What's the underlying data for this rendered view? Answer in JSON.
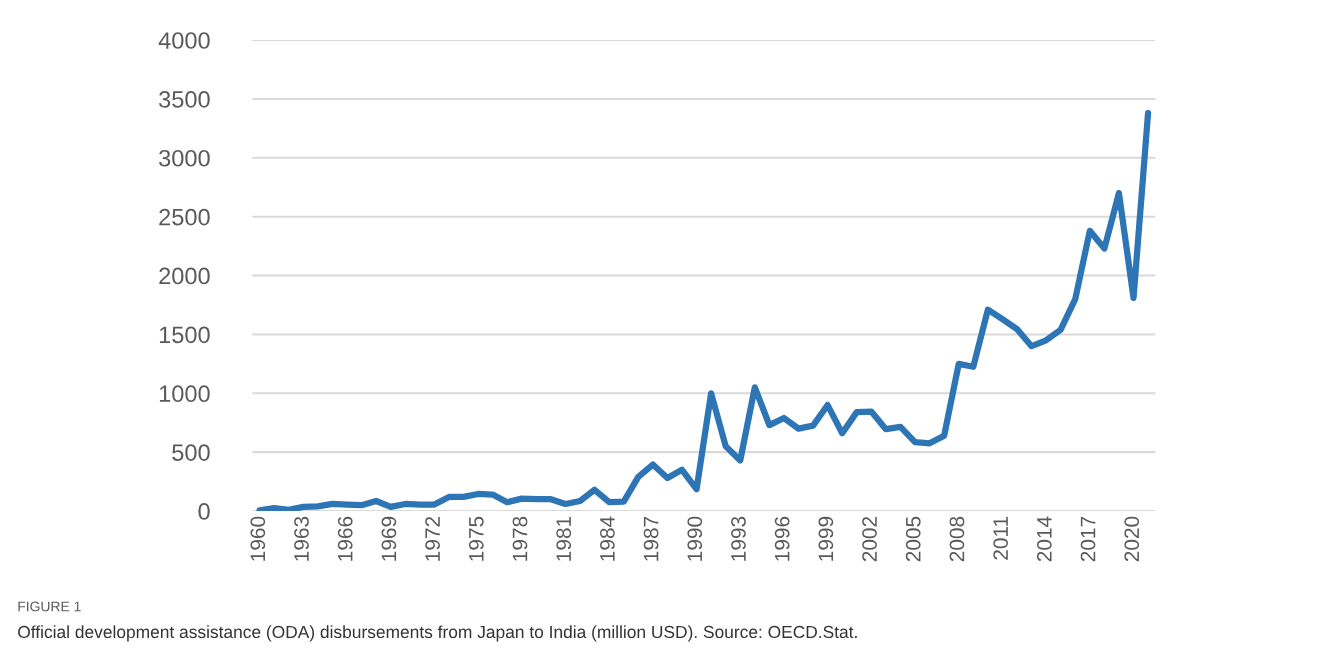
{
  "chart_data": {
    "type": "line",
    "categories": [
      "1960",
      null,
      null,
      "1963",
      null,
      null,
      "1966",
      null,
      null,
      "1969",
      null,
      null,
      "1972",
      null,
      null,
      "1975",
      null,
      null,
      "1978",
      null,
      null,
      "1981",
      null,
      null,
      "1984",
      null,
      null,
      "1987",
      null,
      null,
      "1990",
      null,
      null,
      "1993",
      null,
      null,
      "1996",
      null,
      null,
      "1999",
      null,
      null,
      "2002",
      null,
      null,
      "2005",
      null,
      null,
      "2008",
      null,
      null,
      "2011",
      null,
      null,
      "2014",
      null,
      null,
      "2017",
      null,
      null,
      "2020",
      null
    ],
    "series": [
      {
        "color": "#2e75b6",
        "values": [
          5,
          25,
          10,
          35,
          40,
          60,
          55,
          50,
          85,
          35,
          60,
          55,
          55,
          120,
          120,
          145,
          140,
          75,
          105,
          100,
          100,
          60,
          85,
          180,
          75,
          80,
          290,
          395,
          280,
          350,
          185,
          1000,
          550,
          430,
          1050,
          730,
          790,
          700,
          725,
          900,
          660,
          840,
          845,
          695,
          715,
          585,
          575,
          640,
          1250,
          1225,
          1710,
          1630,
          1545,
          1400,
          1450,
          1540,
          1800,
          2380,
          2230,
          2700,
          1810,
          3380
        ]
      }
    ],
    "ylim": [
      0,
      4000
    ],
    "yticks": [
      0,
      500,
      1000,
      1500,
      2000,
      2500,
      3000,
      3500,
      4000
    ],
    "grid": "y",
    "legend": false,
    "marker": "none",
    "line_style": "solid",
    "annotations": [
      "FIGURE 1",
      "Official development assistance (ODA) disbursements from Japan to India (million USD). Source: OECD.Stat."
    ]
  }
}
